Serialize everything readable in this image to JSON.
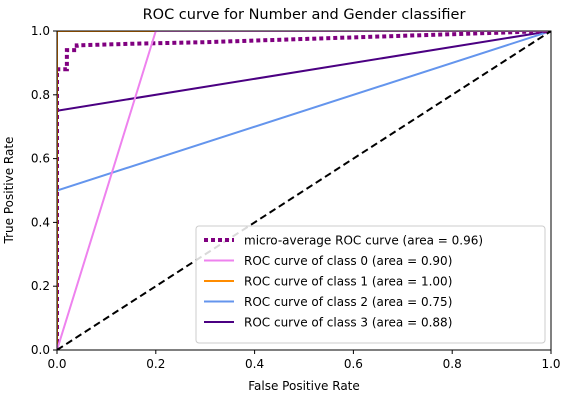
{
  "chart_data": {
    "type": "line",
    "title": "ROC curve for Number and Gender classifier",
    "xlabel": "False Positive Rate",
    "ylabel": "True Positive Rate",
    "xlim": [
      0.0,
      1.0
    ],
    "ylim": [
      0.0,
      1.0
    ],
    "x_ticks": [
      "0.0",
      "0.2",
      "0.4",
      "0.6",
      "0.8",
      "1.0"
    ],
    "y_ticks": [
      "0.0",
      "0.2",
      "0.4",
      "0.6",
      "0.8",
      "1.0"
    ],
    "grid": false,
    "legend_position": "lower-right",
    "series": [
      {
        "name": "micro-average ROC curve (area = 0.96)",
        "color": "#800080",
        "style": "dotted",
        "x": [
          0.0,
          0.0,
          0.02,
          0.02,
          0.04,
          0.04,
          0.15,
          0.3,
          0.5,
          0.7,
          0.9,
          1.0
        ],
        "y": [
          0.0,
          0.88,
          0.88,
          0.94,
          0.94,
          0.955,
          0.96,
          0.965,
          0.975,
          0.985,
          0.995,
          1.0
        ]
      },
      {
        "name": "ROC curve of class 0 (area = 0.90)",
        "color": "#ee82ee",
        "style": "solid",
        "x": [
          0.0,
          0.2,
          1.0
        ],
        "y": [
          0.0,
          1.0,
          1.0
        ]
      },
      {
        "name": "ROC curve of class 1 (area = 1.00)",
        "color": "#ff8c00",
        "style": "solid",
        "x": [
          0.0,
          0.0,
          1.0
        ],
        "y": [
          0.0,
          1.0,
          1.0
        ]
      },
      {
        "name": "ROC curve of class 2 (area = 0.75)",
        "color": "#6495ed",
        "style": "solid",
        "x": [
          0.0,
          0.0,
          1.0
        ],
        "y": [
          0.0,
          0.5,
          1.0
        ]
      },
      {
        "name": "ROC curve of class 3 (area = 0.88)",
        "color": "#4b0082",
        "style": "solid",
        "x": [
          0.0,
          0.0,
          1.0
        ],
        "y": [
          0.0,
          0.75,
          1.0
        ]
      }
    ],
    "reference_line": {
      "color": "#000000",
      "style": "dashed",
      "x": [
        0.0,
        1.0
      ],
      "y": [
        0.0,
        1.0
      ]
    }
  }
}
